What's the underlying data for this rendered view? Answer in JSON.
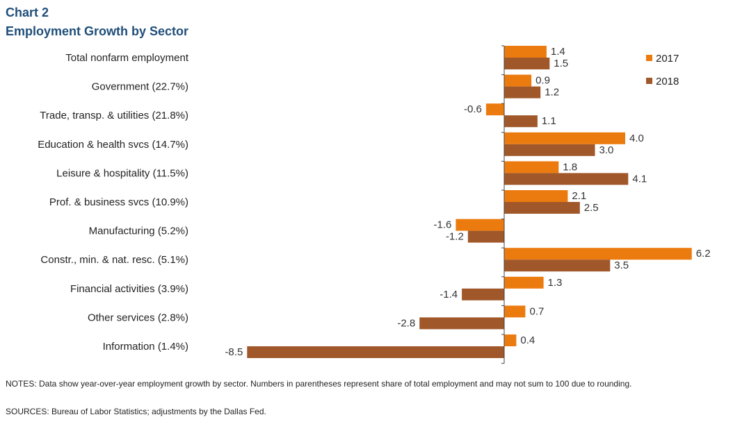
{
  "header": {
    "chart_number": "Chart 2",
    "title": "Employment  Growth by Sector"
  },
  "footer": {
    "notes": "NOTES:  Data show year-over-year employment  growth by sector. Numbers in parentheses represent share of total employment and may not sum to 100 due to rounding.",
    "sources": "SOURCES:  Bureau of Labor Statistics;  adjustments by the Dallas Fed."
  },
  "chart_data": {
    "type": "bar",
    "orientation": "horizontal",
    "title": "Employment  Growth by Sector",
    "categories": [
      "Total nonfarm employment",
      "Government (22.7%)",
      "Trade, transp. & utilities (21.8%)",
      "Education & health svcs (14.7%)",
      "Leisure & hospitality (11.5%)",
      "Prof. & business svcs (10.9%)",
      "Manufacturing (5.2%)",
      "Constr., min. & nat. resc. (5.1%)",
      "Financial activities (3.9%)",
      "Other services (2.8%)",
      "Information (1.4%)"
    ],
    "series": [
      {
        "name": "2017",
        "color": "#ec7b0f",
        "values": [
          1.4,
          0.9,
          -0.6,
          4.0,
          1.8,
          2.1,
          -1.6,
          6.2,
          1.3,
          0.7,
          0.4
        ]
      },
      {
        "name": "2018",
        "color": "#a0582a",
        "values": [
          1.5,
          1.2,
          1.1,
          3.0,
          4.1,
          2.5,
          -1.2,
          3.5,
          -1.4,
          -2.8,
          -8.5
        ]
      }
    ],
    "xlim": [
      -8.5,
      6.2
    ],
    "legend_position": "top-right",
    "data_labels": true,
    "grid": false
  }
}
